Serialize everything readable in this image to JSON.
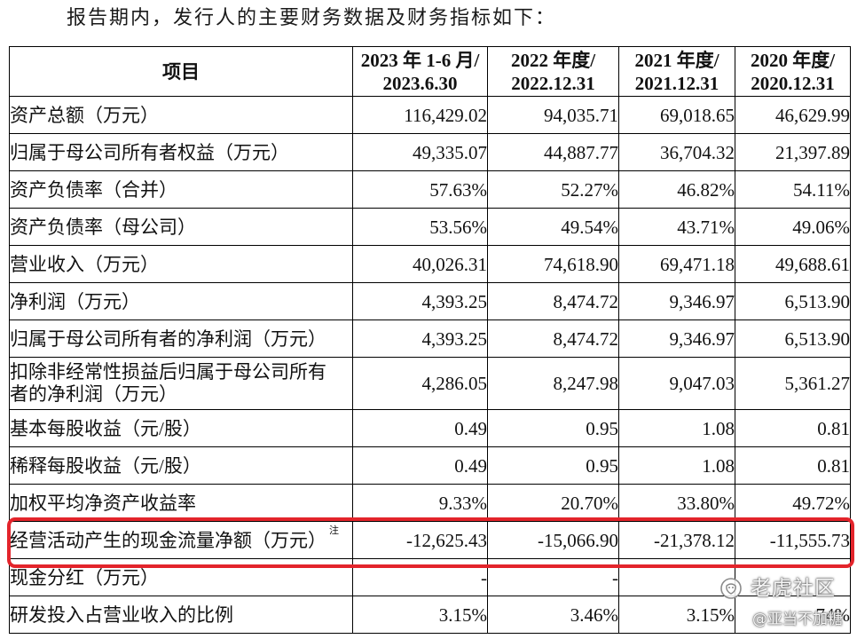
{
  "intro": "报告期内，发行人的主要财务数据及财务指标如下：",
  "table": {
    "header": {
      "item": "项目",
      "periods": [
        {
          "line1": "2023 年 1-6 月/",
          "line2": "2023.6.30"
        },
        {
          "line1": "2022 年度/",
          "line2": "2022.12.31"
        },
        {
          "line1": "2021 年度/",
          "line2": "2021.12.31"
        },
        {
          "line1": "2020 年度/",
          "line2": "2020.12.31"
        }
      ]
    },
    "rows": [
      {
        "label": "资产总额（万元）",
        "values": [
          "116,429.02",
          "94,035.71",
          "69,018.65",
          "46,629.99"
        ]
      },
      {
        "label": "归属于母公司所有者权益（万元）",
        "values": [
          "49,335.07",
          "44,887.77",
          "36,704.32",
          "21,397.89"
        ]
      },
      {
        "label": "资产负债率（合并）",
        "values": [
          "57.63%",
          "52.27%",
          "46.82%",
          "54.11%"
        ]
      },
      {
        "label": "资产负债率（母公司）",
        "values": [
          "53.56%",
          "49.54%",
          "43.71%",
          "49.06%"
        ]
      },
      {
        "label": "营业收入（万元）",
        "values": [
          "40,026.31",
          "74,618.90",
          "69,471.18",
          "49,688.61"
        ]
      },
      {
        "label": "净利润（万元）",
        "values": [
          "4,393.25",
          "8,474.72",
          "9,346.97",
          "6,513.90"
        ]
      },
      {
        "label": "归属于母公司所有者的净利润（万元）",
        "values": [
          "4,393.25",
          "8,474.72",
          "9,346.97",
          "6,513.90"
        ]
      },
      {
        "label_lines": [
          "扣除非经常性损益后归属于母公司所有",
          "者的净利润（万元）"
        ],
        "values": [
          "4,286.05",
          "8,247.98",
          "9,047.03",
          "5,361.27"
        ]
      },
      {
        "label": "基本每股收益（元/股）",
        "values": [
          "0.49",
          "0.95",
          "1.08",
          "0.81"
        ]
      },
      {
        "label": "稀释每股收益（元/股）",
        "values": [
          "0.49",
          "0.95",
          "1.08",
          "0.81"
        ]
      },
      {
        "label": "加权平均净资产收益率",
        "values": [
          "9.33%",
          "20.70%",
          "33.80%",
          "49.72%"
        ]
      },
      {
        "label": "经营活动产生的现金流量净额（万元）",
        "note": "注",
        "values": [
          "-12,625.43",
          "-15,066.90",
          "-21,378.12",
          "-11,555.73"
        ],
        "highlighted": true
      },
      {
        "label": "现金分红（万元）",
        "values": [
          "-",
          "-",
          "",
          ""
        ]
      },
      {
        "label": "研发投入占营业收入的比例",
        "values": [
          "3.15%",
          "3.46%",
          "3.15%",
          "74%"
        ]
      }
    ]
  },
  "watermarks": {
    "community": "老虎社区",
    "author": "@亚当不加糖"
  },
  "icons": {
    "watermark_logo": "tiger-logo-icon"
  },
  "colors": {
    "highlight_border": "#e3242b",
    "text": "#111111",
    "grid": "#000000"
  }
}
